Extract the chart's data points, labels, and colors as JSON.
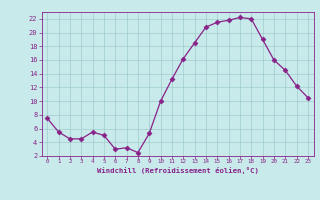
{
  "x": [
    0,
    1,
    2,
    3,
    4,
    5,
    6,
    7,
    8,
    9,
    10,
    11,
    12,
    13,
    14,
    15,
    16,
    17,
    18,
    19,
    20,
    21,
    22,
    23
  ],
  "y": [
    7.5,
    5.5,
    4.5,
    4.5,
    5.5,
    5.0,
    3.0,
    3.2,
    2.5,
    5.3,
    10.0,
    13.2,
    16.2,
    18.5,
    20.8,
    21.5,
    21.8,
    22.2,
    22.0,
    19.0,
    16.0,
    14.5,
    12.2,
    10.5
  ],
  "line_color": "#882288",
  "marker": "D",
  "marker_size": 2.5,
  "bg_color": "#c8eaea",
  "grid_color": "#a0cccc",
  "xlabel": "Windchill (Refroidissement éolien,°C)",
  "xlabel_color": "#882288",
  "tick_color": "#882288",
  "ylim": [
    2,
    23
  ],
  "xlim": [
    -0.5,
    23.5
  ],
  "yticks": [
    2,
    4,
    6,
    8,
    10,
    12,
    14,
    16,
    18,
    20,
    22
  ],
  "xticks": [
    0,
    1,
    2,
    3,
    4,
    5,
    6,
    7,
    8,
    9,
    10,
    11,
    12,
    13,
    14,
    15,
    16,
    17,
    18,
    19,
    20,
    21,
    22,
    23
  ]
}
